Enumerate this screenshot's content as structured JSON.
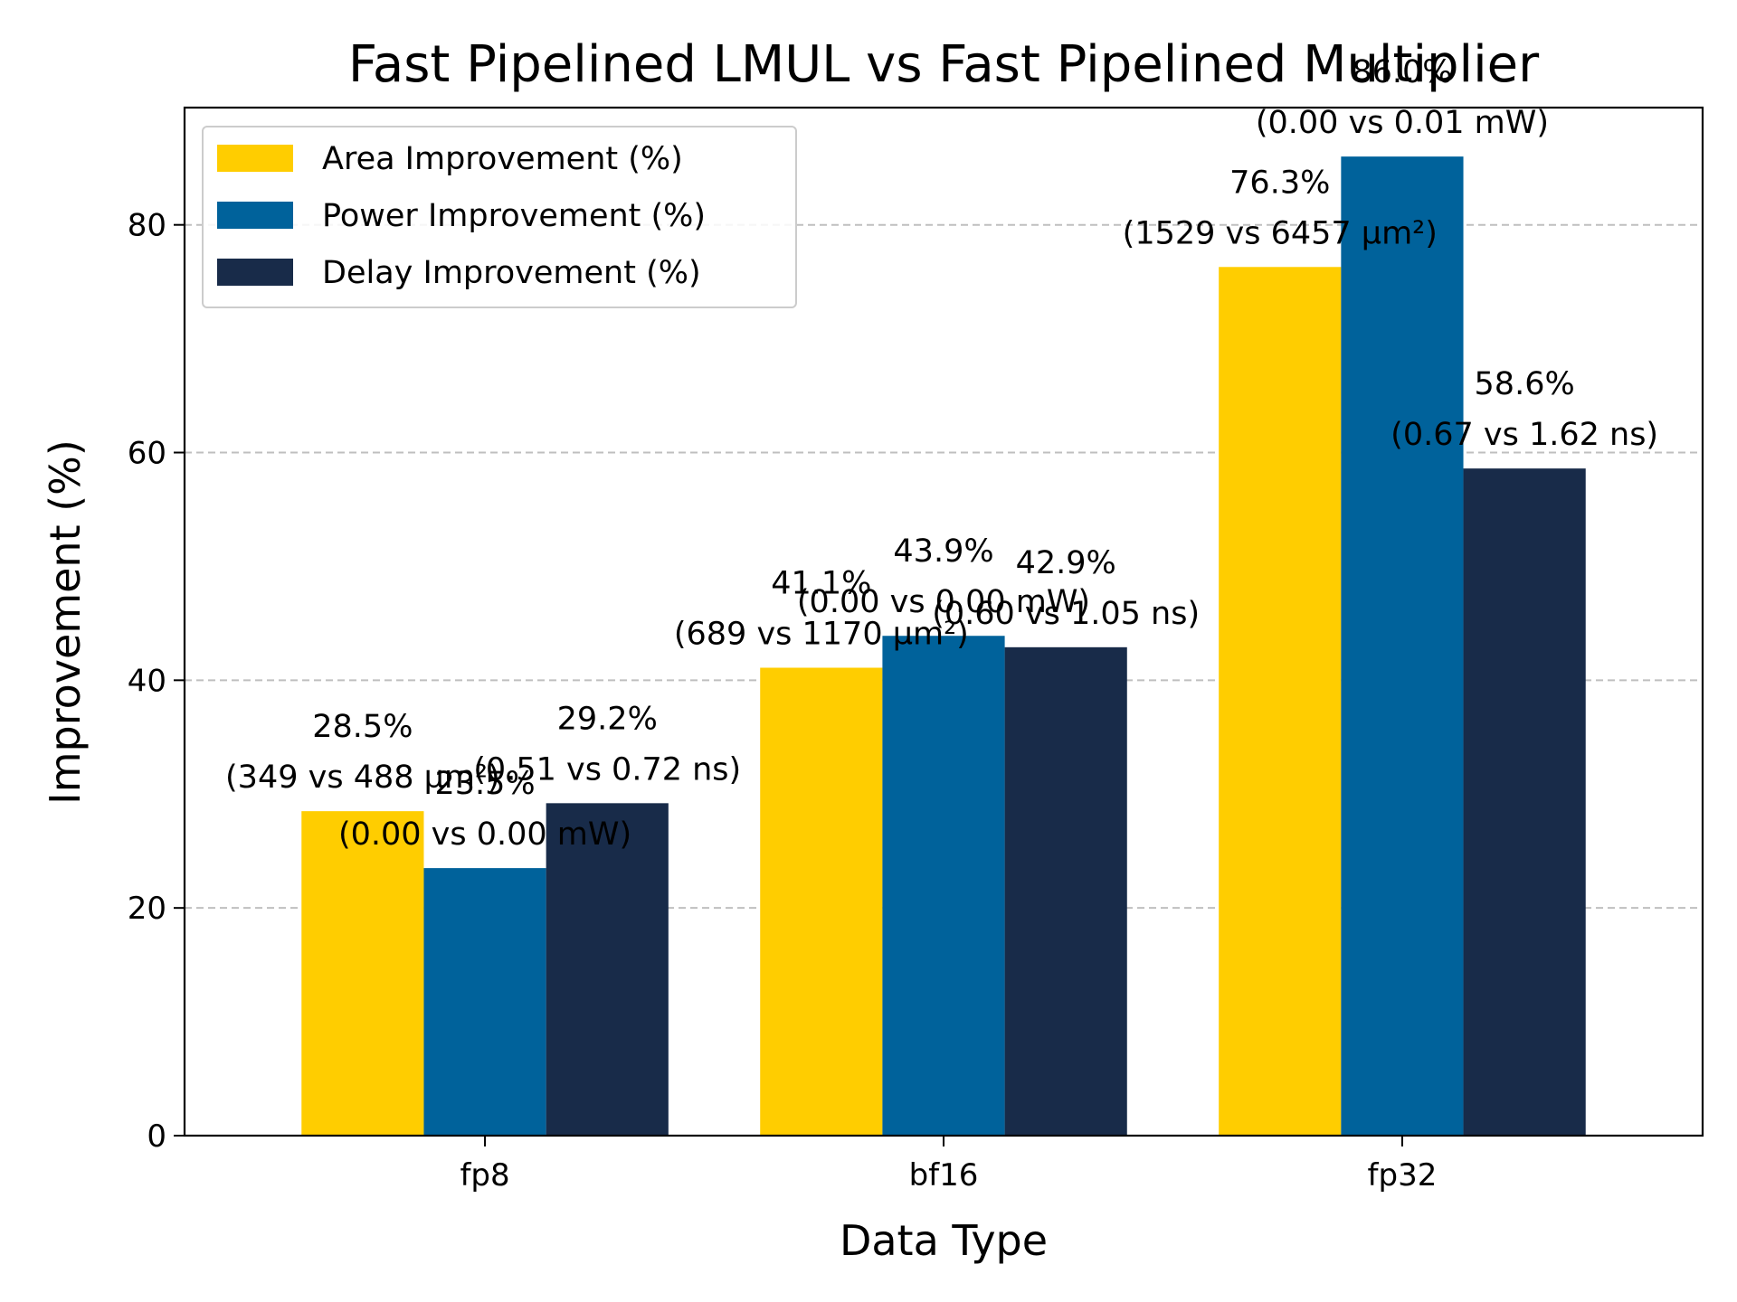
{
  "chart_data": {
    "type": "bar",
    "title": "Fast Pipelined LMUL vs Fast Pipelined Multiplier",
    "xlabel": "Data Type",
    "ylabel": "Improvement (%)",
    "categories": [
      "fp8",
      "bf16",
      "fp32"
    ],
    "ylim": [
      0,
      90.3
    ],
    "yticks": [
      0,
      20,
      40,
      60,
      80
    ],
    "grid": "y-dashed",
    "legend_position": "upper-left",
    "series": [
      {
        "name": "Area Improvement (%)",
        "color": "#FFCD00",
        "values": [
          28.5,
          41.1,
          76.3
        ],
        "value_labels": [
          "28.5%",
          "41.1%",
          "76.3%"
        ],
        "detail_labels": [
          "(349 vs 488 µm²)",
          "(689 vs 1170 µm²)",
          "(1529 vs 6457 µm²)"
        ]
      },
      {
        "name": "Power Improvement (%)",
        "color": "#00629B",
        "values": [
          23.5,
          43.9,
          86.0
        ],
        "value_labels": [
          "23.5%",
          "43.9%",
          "86.0%"
        ],
        "detail_labels": [
          "(0.00 vs 0.00 mW)",
          "(0.00 vs 0.00 mW)",
          "(0.00 vs 0.01 mW)"
        ]
      },
      {
        "name": "Delay Improvement (%)",
        "color": "#182B49",
        "values": [
          29.2,
          42.9,
          58.6
        ],
        "value_labels": [
          "29.2%",
          "42.9%",
          "58.6%"
        ],
        "detail_labels": [
          "(0.51 vs 0.72 ns)",
          "(0.60 vs 1.05 ns)",
          "(0.67 vs 1.62 ns)"
        ]
      }
    ]
  }
}
